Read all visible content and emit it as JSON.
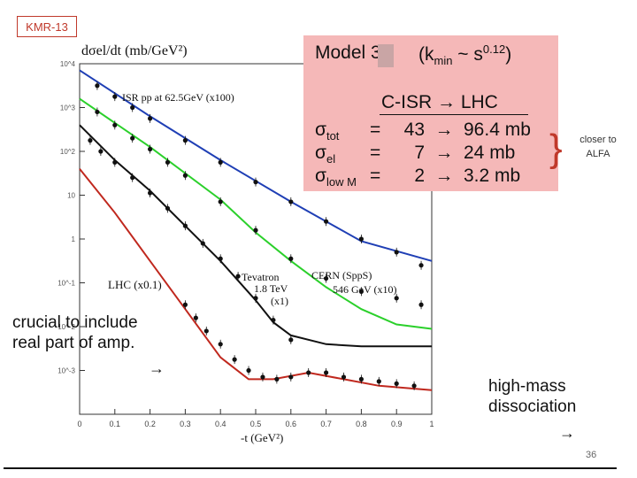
{
  "slide": {
    "tag": "KMR-13",
    "page_number": "36"
  },
  "model_box": {
    "title": "Model 3",
    "kmin": "(k",
    "kmin_sub": "min",
    "kmin_rest": " ~ s",
    "kmin_exp": "0.12",
    "kmin_close": ")",
    "header": "C-ISR → LHC",
    "rows": [
      {
        "sym": "σ",
        "sub": "tot",
        "eq": "=",
        "from": "43",
        "arrow": "→",
        "to": "96.4 mb"
      },
      {
        "sym": "σ",
        "sub": "el",
        "eq": "=",
        "from": "7",
        "arrow": "→",
        "to": "24 mb"
      },
      {
        "sym": "σ",
        "sub": "low M",
        "eq": "=",
        "from": "2",
        "arrow": "→",
        "to": "3.2 mb"
      }
    ]
  },
  "notes": {
    "closer_to_alfa": "closer to ALFA",
    "crucial_line1": "crucial to include",
    "crucial_line2": "real part of amp.",
    "arrow": "→",
    "highmass_line1": "high-mass",
    "highmass_line2": "dissociation"
  },
  "chart_data": {
    "type": "scatter",
    "title": "dσel/dt  (mb/GeV²)",
    "xlabel": "-t (GeV²)",
    "ylabel": "dσel/dt (mb/GeV²)",
    "xlim": [
      0,
      1
    ],
    "ylim_log10": [
      -4,
      4
    ],
    "x_ticks": [
      "0",
      "0.1",
      "0.2",
      "0.3",
      "0.4",
      "0.5",
      "0.6",
      "0.7",
      "0.8",
      "0.9",
      "1"
    ],
    "y_ticks": [
      "10^4",
      "10^3",
      "10^2",
      "10",
      "1",
      "10^-1",
      "10^-2",
      "10^-3"
    ],
    "series": [
      {
        "name": "ISR pp at 62.5GeV (x100)",
        "color": "#1f3fb5",
        "curve": [
          [
            0,
            3.85
          ],
          [
            0.2,
            2.8
          ],
          [
            0.4,
            1.8
          ],
          [
            0.6,
            0.85
          ],
          [
            0.8,
            -0.05
          ],
          [
            1.0,
            -0.5
          ]
        ],
        "points": [
          [
            0.05,
            3.5
          ],
          [
            0.1,
            3.25
          ],
          [
            0.15,
            3.0
          ],
          [
            0.2,
            2.75
          ],
          [
            0.3,
            2.25
          ],
          [
            0.4,
            1.75
          ],
          [
            0.5,
            1.3
          ],
          [
            0.6,
            0.85
          ],
          [
            0.7,
            0.4
          ],
          [
            0.8,
            0.0
          ],
          [
            0.9,
            -0.3
          ],
          [
            0.97,
            -0.6
          ]
        ]
      },
      {
        "name": "CERN (SppS) 546 GeV (x10)",
        "color": "#2bd02b",
        "curve": [
          [
            0,
            3.2
          ],
          [
            0.2,
            2.1
          ],
          [
            0.4,
            0.9
          ],
          [
            0.5,
            0.15
          ],
          [
            0.6,
            -0.5
          ],
          [
            0.7,
            -1.1
          ],
          [
            0.8,
            -1.6
          ],
          [
            0.9,
            -1.95
          ],
          [
            1.0,
            -2.05
          ]
        ],
        "points": [
          [
            0.05,
            2.9
          ],
          [
            0.1,
            2.6
          ],
          [
            0.15,
            2.3
          ],
          [
            0.2,
            2.05
          ],
          [
            0.25,
            1.75
          ],
          [
            0.3,
            1.45
          ],
          [
            0.4,
            0.85
          ],
          [
            0.5,
            0.2
          ],
          [
            0.6,
            -0.45
          ],
          [
            0.7,
            -0.9
          ],
          [
            0.8,
            -1.2
          ],
          [
            0.9,
            -1.35
          ],
          [
            0.97,
            -1.5
          ]
        ]
      },
      {
        "name": "Tevatron 1.8 TeV (x1)",
        "color": "#111111",
        "curve": [
          [
            0,
            2.6
          ],
          [
            0.1,
            1.8
          ],
          [
            0.2,
            1.1
          ],
          [
            0.3,
            0.3
          ],
          [
            0.4,
            -0.5
          ],
          [
            0.5,
            -1.4
          ],
          [
            0.55,
            -1.9
          ],
          [
            0.6,
            -2.2
          ],
          [
            0.7,
            -2.4
          ],
          [
            0.8,
            -2.45
          ],
          [
            1.0,
            -2.45
          ]
        ],
        "points": [
          [
            0.03,
            2.25
          ],
          [
            0.06,
            2.0
          ],
          [
            0.1,
            1.75
          ],
          [
            0.15,
            1.4
          ],
          [
            0.2,
            1.05
          ],
          [
            0.25,
            0.7
          ],
          [
            0.3,
            0.3
          ],
          [
            0.35,
            -0.1
          ],
          [
            0.4,
            -0.45
          ],
          [
            0.45,
            -0.85
          ],
          [
            0.5,
            -1.35
          ],
          [
            0.55,
            -1.85
          ],
          [
            0.6,
            -2.3
          ]
        ]
      },
      {
        "name": "LHC (x0.1)",
        "color": "#c0281e",
        "curve": [
          [
            0,
            1.6
          ],
          [
            0.1,
            0.6
          ],
          [
            0.2,
            -0.5
          ],
          [
            0.3,
            -1.6
          ],
          [
            0.4,
            -2.7
          ],
          [
            0.48,
            -3.2
          ],
          [
            0.55,
            -3.2
          ],
          [
            0.65,
            -3.05
          ],
          [
            0.75,
            -3.2
          ],
          [
            0.85,
            -3.35
          ],
          [
            1.0,
            -3.45
          ]
        ],
        "points": [
          [
            0.3,
            -1.5
          ],
          [
            0.33,
            -1.8
          ],
          [
            0.36,
            -2.1
          ],
          [
            0.4,
            -2.4
          ],
          [
            0.44,
            -2.75
          ],
          [
            0.48,
            -3.0
          ],
          [
            0.52,
            -3.15
          ],
          [
            0.56,
            -3.2
          ],
          [
            0.6,
            -3.15
          ],
          [
            0.65,
            -3.05
          ],
          [
            0.7,
            -3.05
          ],
          [
            0.75,
            -3.15
          ],
          [
            0.8,
            -3.2
          ],
          [
            0.85,
            -3.25
          ],
          [
            0.9,
            -3.3
          ],
          [
            0.95,
            -3.35
          ]
        ]
      }
    ],
    "annotations": [
      "ISR pp at 62.5GeV  (x100)",
      "LHC (x0.1)",
      "Tevatron",
      "1.8 TeV",
      "(x1)",
      "CERN (SppS)",
      "546 GeV  (x10)"
    ]
  }
}
